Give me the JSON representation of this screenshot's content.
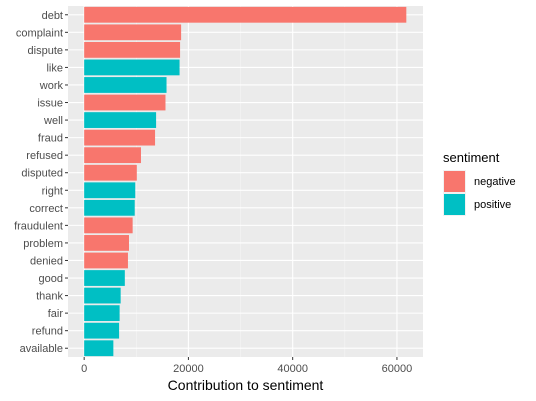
{
  "chart_data": {
    "type": "bar",
    "orientation": "horizontal",
    "xlabel": "Contribution to sentiment",
    "xlim": [
      -3100,
      65000
    ],
    "x_ticks": [
      0,
      20000,
      40000,
      60000
    ],
    "x_tick_labels": [
      "0",
      "20000",
      "40000",
      "60000"
    ],
    "grid": true,
    "panel_background": "#ebebeb",
    "legend": {
      "title": "sentiment",
      "position": "right",
      "entries": [
        {
          "label": "negative",
          "color": "#F8766D"
        },
        {
          "label": "positive",
          "color": "#00BFC4"
        }
      ]
    },
    "categories": [
      "debt",
      "complaint",
      "dispute",
      "like",
      "work",
      "issue",
      "well",
      "fraud",
      "refused",
      "disputed",
      "right",
      "correct",
      "fraudulent",
      "problem",
      "denied",
      "good",
      "thank",
      "fair",
      "refund",
      "available"
    ],
    "values": [
      61800,
      18600,
      18400,
      18300,
      15800,
      15600,
      13800,
      13600,
      10900,
      10100,
      9800,
      9700,
      9300,
      8600,
      8400,
      7800,
      7000,
      6800,
      6700,
      5600
    ],
    "sentiments": [
      "negative",
      "negative",
      "negative",
      "positive",
      "positive",
      "negative",
      "positive",
      "negative",
      "negative",
      "negative",
      "positive",
      "positive",
      "negative",
      "negative",
      "negative",
      "positive",
      "positive",
      "positive",
      "positive",
      "positive"
    ]
  }
}
